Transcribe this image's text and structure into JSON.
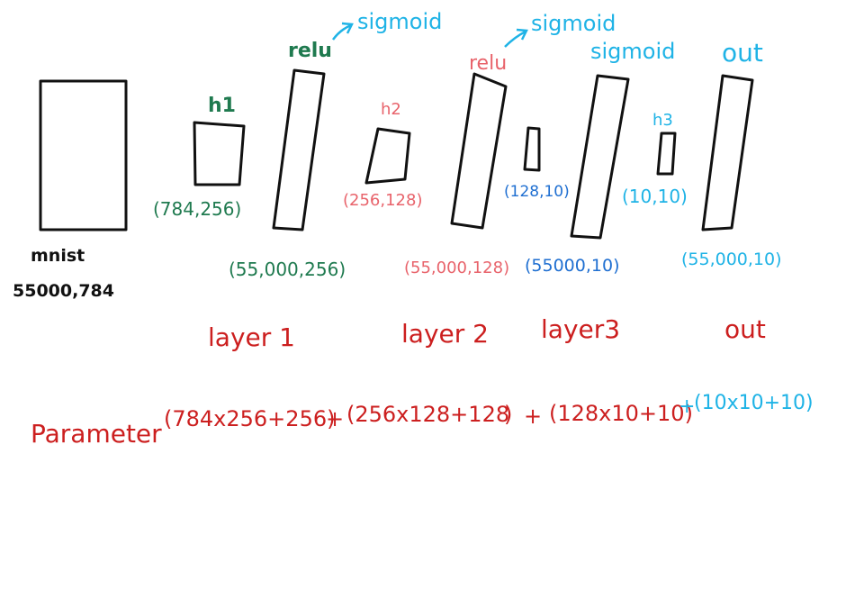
{
  "diagram": {
    "input": {
      "name": "mnist",
      "shape": "55000,784"
    },
    "weights": {
      "h1": {
        "name": "h1",
        "shape": "(784,256)"
      },
      "h2": {
        "name": "h2",
        "shape": "(256,128)"
      },
      "h3": {
        "name": "h3",
        "shape": "(10,10)"
      },
      "b3": {
        "shape": "(128,10)"
      }
    },
    "activations": {
      "a1": {
        "label": "relu",
        "secondary": "sigmoid",
        "shape": "(55,000,256)"
      },
      "a2": {
        "label": "relu",
        "secondary": "sigmoid",
        "shape": "(55,000,128)"
      },
      "a3": {
        "label": "sigmoid",
        "shape": "(55000,10)"
      },
      "out": {
        "label": "out",
        "shape": "(55,000,10)"
      }
    },
    "layer_labels": [
      "layer 1",
      "layer 2",
      "layer3",
      "out"
    ],
    "parameter": {
      "label": "Parameter",
      "terms": [
        "(784x256+256)",
        "+",
        "(256x128+128",
        ")",
        "+",
        "(128x10+10)",
        "+",
        "(10x10+10)"
      ]
    }
  },
  "colors": {
    "green": "#1f7a4f",
    "pink": "#e8636b",
    "blue": "#1f6fd1",
    "cyan": "#1fb3e6",
    "red": "#cc1f1f",
    "black": "#111111"
  }
}
